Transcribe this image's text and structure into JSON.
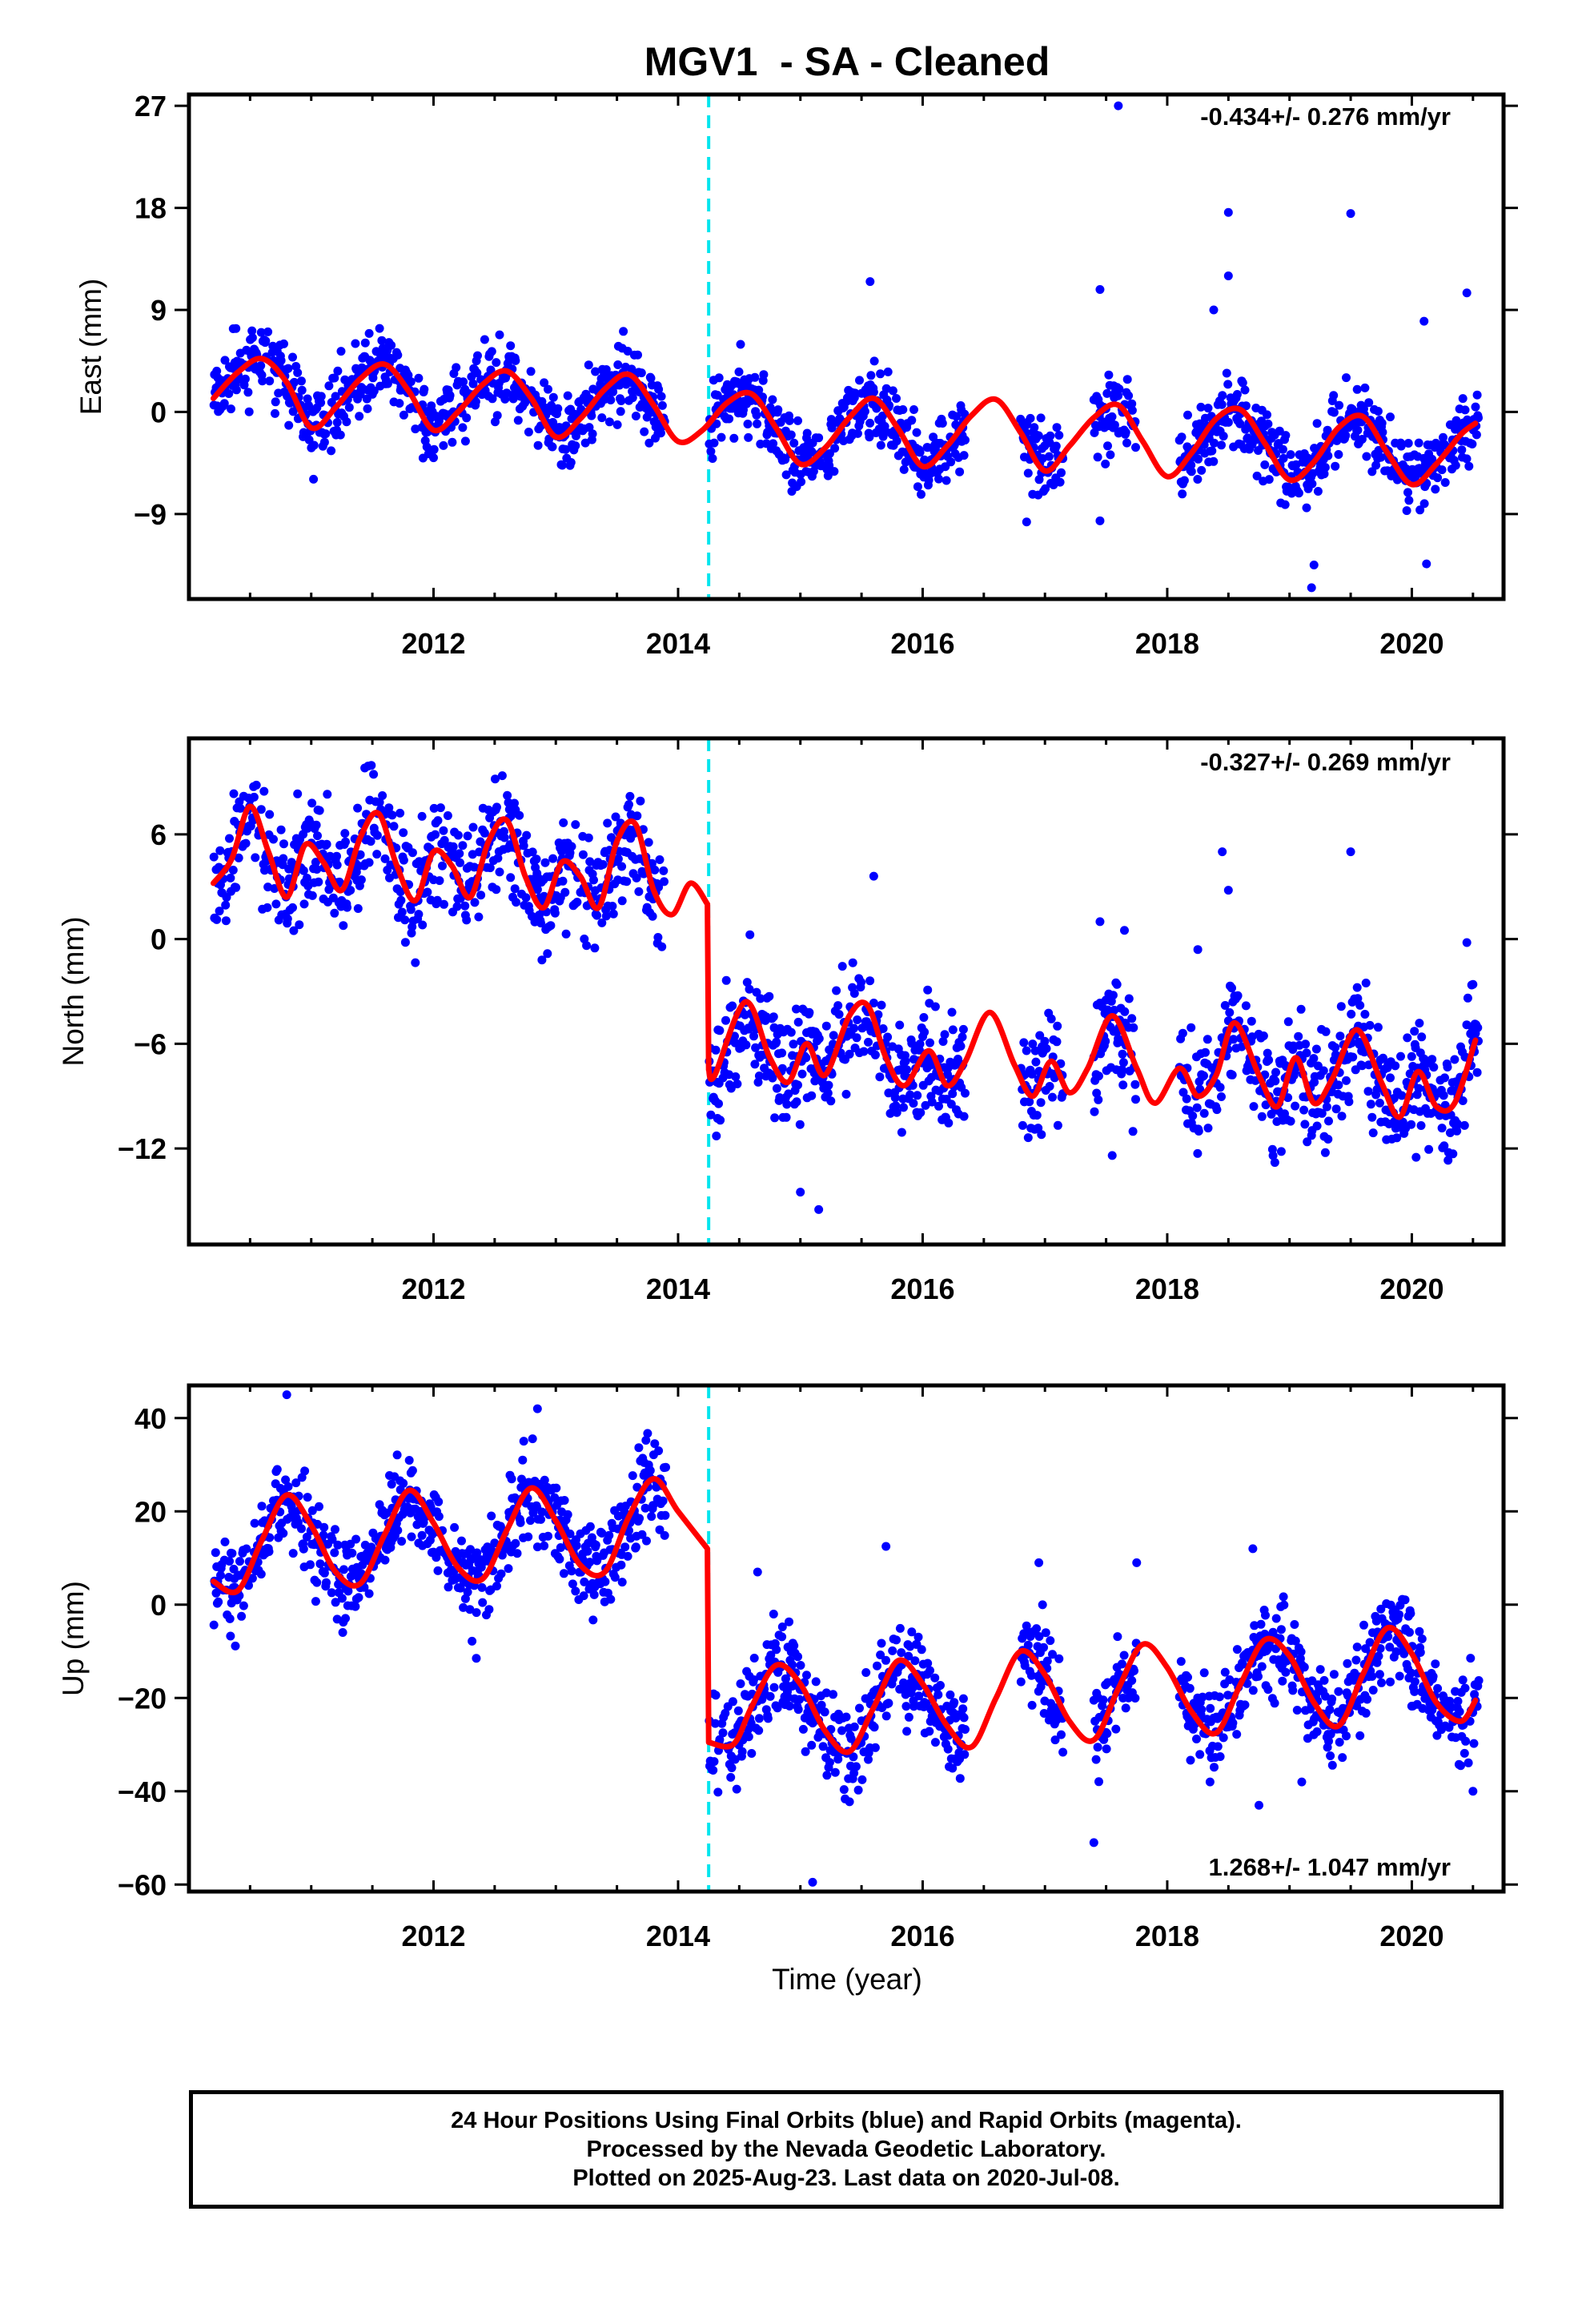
{
  "title": "MGV1  - SA - Cleaned",
  "colors": {
    "points": "#0000ff",
    "model": "#ff0000",
    "offset_line": "#00e5ee",
    "frame": "#000000"
  },
  "footer": {
    "line1": "24 Hour Positions Using Final Orbits (blue) and Rapid Orbits (magenta).",
    "line2": "Processed by the Nevada Geodetic Laboratory.",
    "line3": "Plotted on 2025-Aug-23. Last data on 2020-Jul-08."
  },
  "chart_data": [
    {
      "type": "scatter",
      "name": "east",
      "ylabel": "East (mm)",
      "xlabel": "",
      "rate_label": "-0.434+/- 0.276 mm/yr",
      "xlim": [
        2010.0,
        2020.75
      ],
      "ylim": [
        -16.5,
        28
      ],
      "xticks": [
        2012,
        2014,
        2016,
        2018,
        2020
      ],
      "yticks": [
        -9,
        0,
        9,
        18,
        27
      ],
      "offset_epoch": 2014.25,
      "data_segments": [
        [
          2010.2,
          2013.9
        ],
        [
          2014.25,
          2016.35
        ],
        [
          2016.8,
          2017.15
        ],
        [
          2017.4,
          2017.75
        ],
        [
          2018.1,
          2020.55
        ]
      ],
      "model": {
        "x": [
          2010.2,
          2010.4,
          2010.6,
          2010.8,
          2011.0,
          2011.2,
          2011.4,
          2011.6,
          2011.8,
          2012.0,
          2012.2,
          2012.4,
          2012.6,
          2012.8,
          2013.0,
          2013.2,
          2013.4,
          2013.6,
          2013.8,
          2014.0,
          2014.2,
          2014.4,
          2014.6,
          2014.8,
          2015.0,
          2015.2,
          2015.4,
          2015.6,
          2015.8,
          2016.0,
          2016.2,
          2016.4,
          2016.6,
          2016.8,
          2017.0,
          2017.2,
          2017.4,
          2017.6,
          2017.8,
          2018.0,
          2018.2,
          2018.4,
          2018.6,
          2018.8,
          2019.0,
          2019.2,
          2019.4,
          2019.6,
          2019.8,
          2020.0,
          2020.2,
          2020.4,
          2020.52
        ],
        "y": [
          1.2,
          3.5,
          4.7,
          2.6,
          -1.4,
          0.4,
          2.9,
          4.2,
          1.8,
          -1.6,
          0.0,
          2.4,
          3.6,
          1.2,
          -2.2,
          -0.6,
          2.0,
          3.3,
          0.6,
          -2.6,
          -1.6,
          0.8,
          1.6,
          -1.4,
          -4.6,
          -3.2,
          -0.5,
          1.2,
          -1.5,
          -4.8,
          -3.0,
          -0.3,
          1.1,
          -1.8,
          -5.2,
          -3.0,
          -0.5,
          0.6,
          -2.6,
          -5.7,
          -3.6,
          -0.6,
          0.2,
          -2.8,
          -6.0,
          -4.4,
          -1.4,
          -0.4,
          -3.6,
          -6.4,
          -4.6,
          -2.0,
          -1.0
        ]
      },
      "scatter": {
        "spread": 1.6,
        "outliers": [
          [
            2017.6,
            27.0
          ],
          [
            2018.5,
            17.6
          ],
          [
            2019.5,
            17.5
          ],
          [
            2018.5,
            12.0
          ],
          [
            2020.45,
            10.5
          ],
          [
            2018.38,
            9.0
          ],
          [
            2017.45,
            10.8
          ],
          [
            2020.1,
            8.0
          ],
          [
            2019.2,
            -13.5
          ],
          [
            2019.18,
            -15.5
          ],
          [
            2020.12,
            -13.4
          ],
          [
            2015.57,
            11.5
          ],
          [
            2016.85,
            -9.7
          ],
          [
            2017.45,
            -9.6
          ]
        ]
      }
    },
    {
      "type": "scatter",
      "name": "north",
      "ylabel": "North (mm)",
      "xlabel": "",
      "rate_label": "-0.327+/- 0.269 mm/yr",
      "xlim": [
        2010.0,
        2020.75
      ],
      "ylim": [
        -17.5,
        11.5
      ],
      "xticks": [
        2012,
        2014,
        2016,
        2018,
        2020
      ],
      "yticks": [
        -12,
        -6,
        0,
        6
      ],
      "offset_epoch": 2014.25,
      "data_segments": [
        [
          2010.2,
          2013.9
        ],
        [
          2014.25,
          2016.35
        ],
        [
          2016.8,
          2017.15
        ],
        [
          2017.4,
          2017.75
        ],
        [
          2018.1,
          2020.55
        ]
      ],
      "model": {
        "x": [
          2010.2,
          2010.35,
          2010.5,
          2010.65,
          2010.8,
          2010.95,
          2011.1,
          2011.25,
          2011.4,
          2011.55,
          2011.7,
          2011.85,
          2012.0,
          2012.15,
          2012.3,
          2012.45,
          2012.6,
          2012.75,
          2012.9,
          2013.05,
          2013.2,
          2013.35,
          2013.5,
          2013.65,
          2013.8,
          2013.95,
          2014.1,
          2014.24,
          2014.25,
          2014.3,
          2014.55,
          2014.75,
          2014.9,
          2015.05,
          2015.2,
          2015.4,
          2015.55,
          2015.7,
          2015.85,
          2016.05,
          2016.2,
          2016.35,
          2016.55,
          2016.75,
          2016.9,
          2017.05,
          2017.2,
          2017.35,
          2017.55,
          2017.75,
          2017.9,
          2018.1,
          2018.25,
          2018.4,
          2018.55,
          2018.75,
          2018.9,
          2019.05,
          2019.2,
          2019.35,
          2019.55,
          2019.75,
          2019.9,
          2020.05,
          2020.2,
          2020.35,
          2020.52
        ],
        "y": [
          3.2,
          4.6,
          7.6,
          5.0,
          2.4,
          5.4,
          4.4,
          2.8,
          5.8,
          7.2,
          4.2,
          2.2,
          5.0,
          4.2,
          2.4,
          5.6,
          6.8,
          3.6,
          1.8,
          4.4,
          3.6,
          1.8,
          5.6,
          6.6,
          2.8,
          1.4,
          3.2,
          2.0,
          -7.5,
          -7.8,
          -3.6,
          -6.8,
          -8.2,
          -6.0,
          -7.8,
          -4.4,
          -3.8,
          -6.8,
          -8.4,
          -6.4,
          -8.4,
          -7.0,
          -4.2,
          -7.2,
          -9.0,
          -7.0,
          -8.8,
          -7.4,
          -4.4,
          -7.4,
          -9.4,
          -7.4,
          -9.0,
          -7.8,
          -4.8,
          -7.8,
          -9.6,
          -6.8,
          -9.4,
          -8.0,
          -5.2,
          -8.2,
          -10.2,
          -7.6,
          -9.6,
          -9.4,
          -5.8
        ]
      },
      "scatter": {
        "spread": 1.6,
        "outliers": [
          [
            2018.45,
            5.0
          ],
          [
            2019.5,
            5.0
          ],
          [
            2018.5,
            2.8
          ],
          [
            2015.6,
            3.6
          ],
          [
            2017.45,
            1.0
          ],
          [
            2020.45,
            -0.2
          ],
          [
            2020.5,
            -2.6
          ],
          [
            2015.15,
            -15.5
          ],
          [
            2015.0,
            -14.5
          ],
          [
            2017.55,
            -12.4
          ],
          [
            2018.88,
            -12.8
          ],
          [
            2018.25,
            -0.6
          ],
          [
            2017.65,
            0.5
          ]
        ]
      }
    },
    {
      "type": "scatter",
      "name": "up",
      "ylabel": "Up (mm)",
      "xlabel": "Time (year)",
      "rate_label": "1.268+/- 1.047 mm/yr",
      "xlim": [
        2010.0,
        2020.75
      ],
      "ylim": [
        -61.5,
        47
      ],
      "xticks": [
        2012,
        2014,
        2016,
        2018,
        2020
      ],
      "yticks": [
        -60,
        -40,
        -20,
        0,
        20,
        40
      ],
      "offset_epoch": 2014.25,
      "data_segments": [
        [
          2010.2,
          2013.9
        ],
        [
          2014.25,
          2016.35
        ],
        [
          2016.8,
          2017.15
        ],
        [
          2017.4,
          2017.75
        ],
        [
          2018.1,
          2020.55
        ]
      ],
      "model": {
        "x": [
          2010.2,
          2010.4,
          2010.6,
          2010.8,
          2011.0,
          2011.2,
          2011.4,
          2011.6,
          2011.8,
          2012.0,
          2012.2,
          2012.4,
          2012.6,
          2012.8,
          2013.0,
          2013.2,
          2013.4,
          2013.6,
          2013.8,
          2014.0,
          2014.24,
          2014.25,
          2014.45,
          2014.6,
          2014.8,
          2015.0,
          2015.2,
          2015.4,
          2015.6,
          2015.8,
          2016.0,
          2016.2,
          2016.4,
          2016.6,
          2016.8,
          2017.0,
          2017.2,
          2017.4,
          2017.6,
          2017.8,
          2018.0,
          2018.2,
          2018.4,
          2018.6,
          2018.8,
          2019.0,
          2019.2,
          2019.4,
          2019.6,
          2019.8,
          2020.0,
          2020.2,
          2020.4,
          2020.52
        ],
        "y": [
          5.0,
          3.0,
          14.0,
          23.5,
          17.0,
          7.0,
          4.5,
          15.0,
          24.5,
          17.5,
          8.0,
          5.5,
          16.0,
          25.0,
          18.0,
          8.5,
          7.0,
          19.0,
          27.0,
          20.0,
          12.0,
          -29.5,
          -30.0,
          -22.0,
          -13.0,
          -17.0,
          -27.0,
          -31.5,
          -22.0,
          -12.0,
          -17.0,
          -26.0,
          -30.5,
          -20.0,
          -10.0,
          -15.0,
          -25.0,
          -29.0,
          -18.0,
          -8.5,
          -13.5,
          -23.0,
          -27.5,
          -17.0,
          -7.5,
          -11.0,
          -21.0,
          -26.0,
          -15.0,
          -5.0,
          -10.5,
          -21.0,
          -25.0,
          -20.5
        ]
      },
      "scatter": {
        "spread": 5.0,
        "outliers": [
          [
            2010.8,
            45.0
          ],
          [
            2012.85,
            42.0
          ],
          [
            2017.4,
            -51.0
          ],
          [
            2015.1,
            -59.5
          ],
          [
            2018.75,
            -43.0
          ],
          [
            2019.1,
            -38.0
          ],
          [
            2020.5,
            -40.0
          ],
          [
            2018.35,
            -38.0
          ],
          [
            2012.35,
            -11.5
          ],
          [
            2015.7,
            12.5
          ],
          [
            2018.7,
            12.0
          ],
          [
            2014.65,
            7.0
          ],
          [
            2016.95,
            9.0
          ],
          [
            2017.75,
            9.0
          ]
        ]
      }
    }
  ]
}
